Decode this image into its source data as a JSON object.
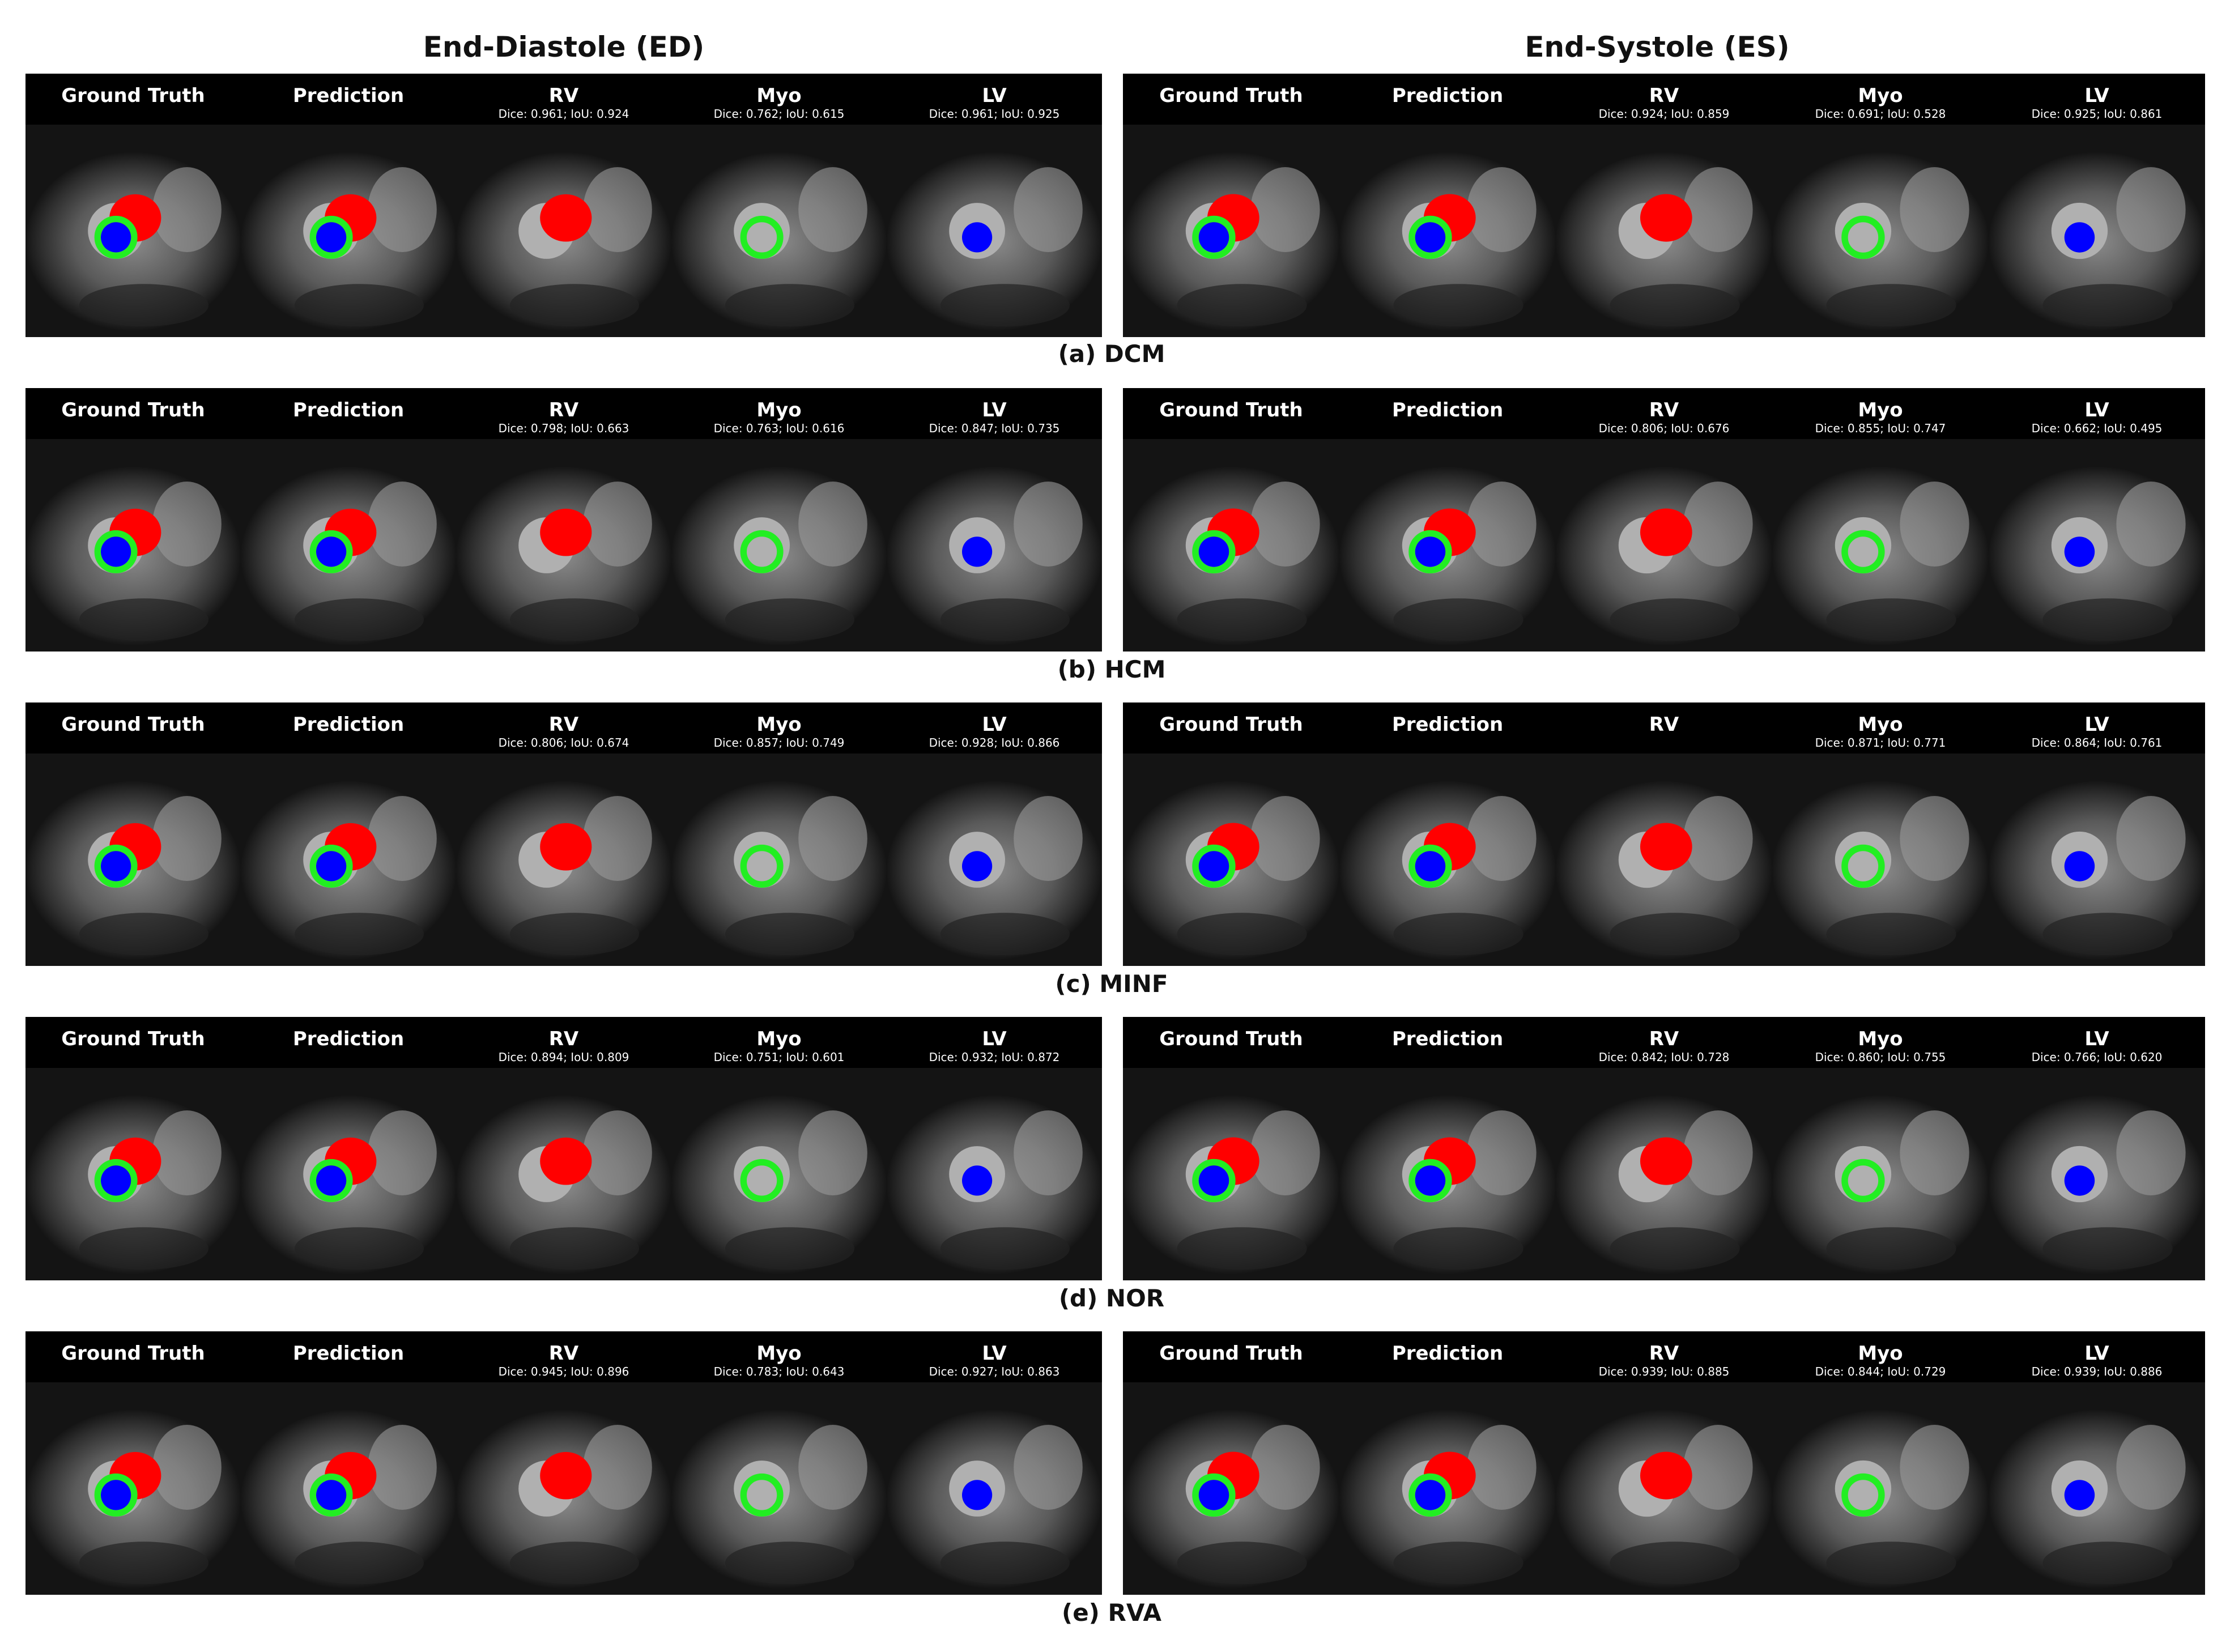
{
  "header": {
    "ed_title": "End-Diastole (ED)",
    "es_title": "End-Systole (ES)"
  },
  "rows": [
    {
      "label": "(a) DCM",
      "ed": [
        {
          "title": "Ground Truth"
        },
        {
          "title": "Prediction"
        },
        {
          "title": "RV",
          "metrics": "Dice: 0.961; IoU: 0.924"
        },
        {
          "title": "Myo",
          "metrics": "Dice: 0.762; IoU: 0.615"
        },
        {
          "title": "LV",
          "metrics": "Dice: 0.961; IoU: 0.925"
        }
      ],
      "es": [
        {
          "title": "Ground Truth"
        },
        {
          "title": "Prediction"
        },
        {
          "title": "RV",
          "metrics": "Dice: 0.924; IoU: 0.859"
        },
        {
          "title": "Myo",
          "metrics": "Dice: 0.691; IoU: 0.528"
        },
        {
          "title": "LV",
          "metrics": "Dice: 0.925; IoU: 0.861"
        }
      ]
    },
    {
      "label": "(b) HCM",
      "ed": [
        {
          "title": "Ground Truth"
        },
        {
          "title": "Prediction"
        },
        {
          "title": "RV",
          "metrics": "Dice: 0.798; IoU: 0.663"
        },
        {
          "title": "Myo",
          "metrics": "Dice: 0.763; IoU: 0.616"
        },
        {
          "title": "LV",
          "metrics": "Dice: 0.847; IoU: 0.735"
        }
      ],
      "es": [
        {
          "title": "Ground Truth"
        },
        {
          "title": "Prediction"
        },
        {
          "title": "RV",
          "metrics": "Dice: 0.806; IoU: 0.676"
        },
        {
          "title": "Myo",
          "metrics": "Dice: 0.855; IoU: 0.747"
        },
        {
          "title": "LV",
          "metrics": "Dice: 0.662; IoU: 0.495"
        }
      ]
    },
    {
      "label": "(c) MINF",
      "ed": [
        {
          "title": "Ground Truth"
        },
        {
          "title": "Prediction"
        },
        {
          "title": "RV",
          "metrics": "Dice: 0.806; IoU: 0.674"
        },
        {
          "title": "Myo",
          "metrics": "Dice: 0.857; IoU: 0.749"
        },
        {
          "title": "LV",
          "metrics": "Dice: 0.928; IoU: 0.866"
        }
      ],
      "es": [
        {
          "title": "Ground Truth"
        },
        {
          "title": "Prediction"
        },
        {
          "title": "RV"
        },
        {
          "title": "Myo",
          "metrics": "Dice: 0.871; IoU: 0.771"
        },
        {
          "title": "LV",
          "metrics": "Dice: 0.864; IoU: 0.761"
        }
      ]
    },
    {
      "label": "(d) NOR",
      "ed": [
        {
          "title": "Ground Truth"
        },
        {
          "title": "Prediction"
        },
        {
          "title": "RV",
          "metrics": "Dice: 0.894; IoU: 0.809"
        },
        {
          "title": "Myo",
          "metrics": "Dice: 0.751; IoU: 0.601"
        },
        {
          "title": "LV",
          "metrics": "Dice: 0.932; IoU: 0.872"
        }
      ],
      "es": [
        {
          "title": "Ground Truth"
        },
        {
          "title": "Prediction"
        },
        {
          "title": "RV",
          "metrics": "Dice: 0.842; IoU: 0.728"
        },
        {
          "title": "Myo",
          "metrics": "Dice: 0.860; IoU: 0.755"
        },
        {
          "title": "LV",
          "metrics": "Dice: 0.766; IoU: 0.620"
        }
      ]
    },
    {
      "label": "(e) RVA",
      "ed": [
        {
          "title": "Ground Truth"
        },
        {
          "title": "Prediction"
        },
        {
          "title": "RV",
          "metrics": "Dice: 0.945; IoU: 0.896"
        },
        {
          "title": "Myo",
          "metrics": "Dice: 0.783; IoU: 0.643"
        },
        {
          "title": "LV",
          "metrics": "Dice: 0.927; IoU: 0.863"
        }
      ],
      "es": [
        {
          "title": "Ground Truth"
        },
        {
          "title": "Prediction"
        },
        {
          "title": "RV",
          "metrics": "Dice: 0.939; IoU: 0.885"
        },
        {
          "title": "Myo",
          "metrics": "Dice: 0.844; IoU: 0.729"
        },
        {
          "title": "LV",
          "metrics": "Dice: 0.939; IoU: 0.886"
        }
      ]
    }
  ]
}
